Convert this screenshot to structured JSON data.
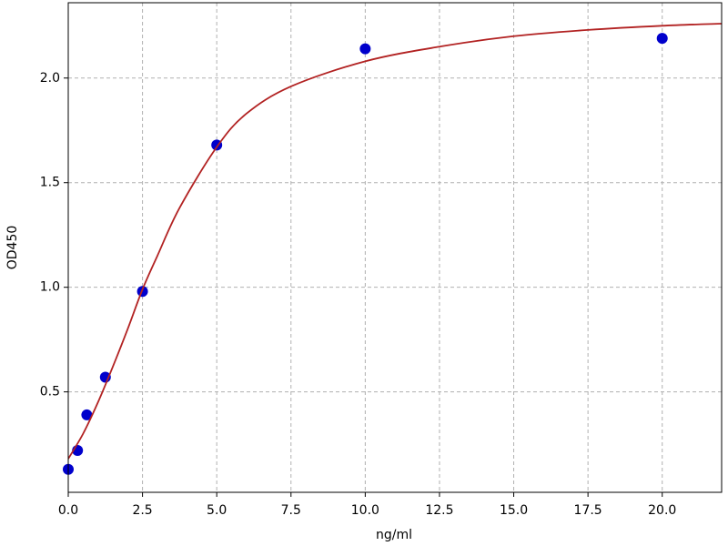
{
  "chart_data": {
    "type": "scatter",
    "xlabel": "ng/ml",
    "ylabel": "OD450",
    "xlim": [
      0,
      22
    ],
    "ylim": [
      0.02,
      2.36
    ],
    "xticks": [
      {
        "value": 0,
        "label": "0.0"
      },
      2.5,
      {
        "value": 5,
        "label": "5.0"
      },
      7.5,
      {
        "value": 10,
        "label": "10.0"
      },
      12.5,
      {
        "value": 15,
        "label": "15.0"
      },
      17.5,
      {
        "value": 20,
        "label": "20.0"
      }
    ],
    "yticks": [
      0.5,
      {
        "value": 1,
        "label": "1.0"
      },
      1.5,
      {
        "value": 2,
        "label": "2.0"
      }
    ],
    "grid": true,
    "series": [
      {
        "type": "scatter",
        "color": "#0000cc",
        "x": [
          0,
          0.3125,
          0.625,
          1.25,
          2.5,
          5,
          10,
          20
        ],
        "values": [
          0.13,
          0.22,
          0.39,
          0.57,
          0.98,
          1.68,
          2.14,
          2.19
        ]
      },
      {
        "type": "line",
        "color": "#b22222",
        "x": [
          0,
          0.5,
          1,
          1.5,
          2,
          2.5,
          3,
          3.75,
          5,
          6,
          7.5,
          10,
          12.5,
          15,
          17.5,
          20,
          22
        ],
        "values": [
          0.18,
          0.3,
          0.45,
          0.62,
          0.8,
          0.99,
          1.15,
          1.38,
          1.67,
          1.83,
          1.96,
          2.08,
          2.15,
          2.2,
          2.23,
          2.25,
          2.26
        ]
      }
    ]
  }
}
